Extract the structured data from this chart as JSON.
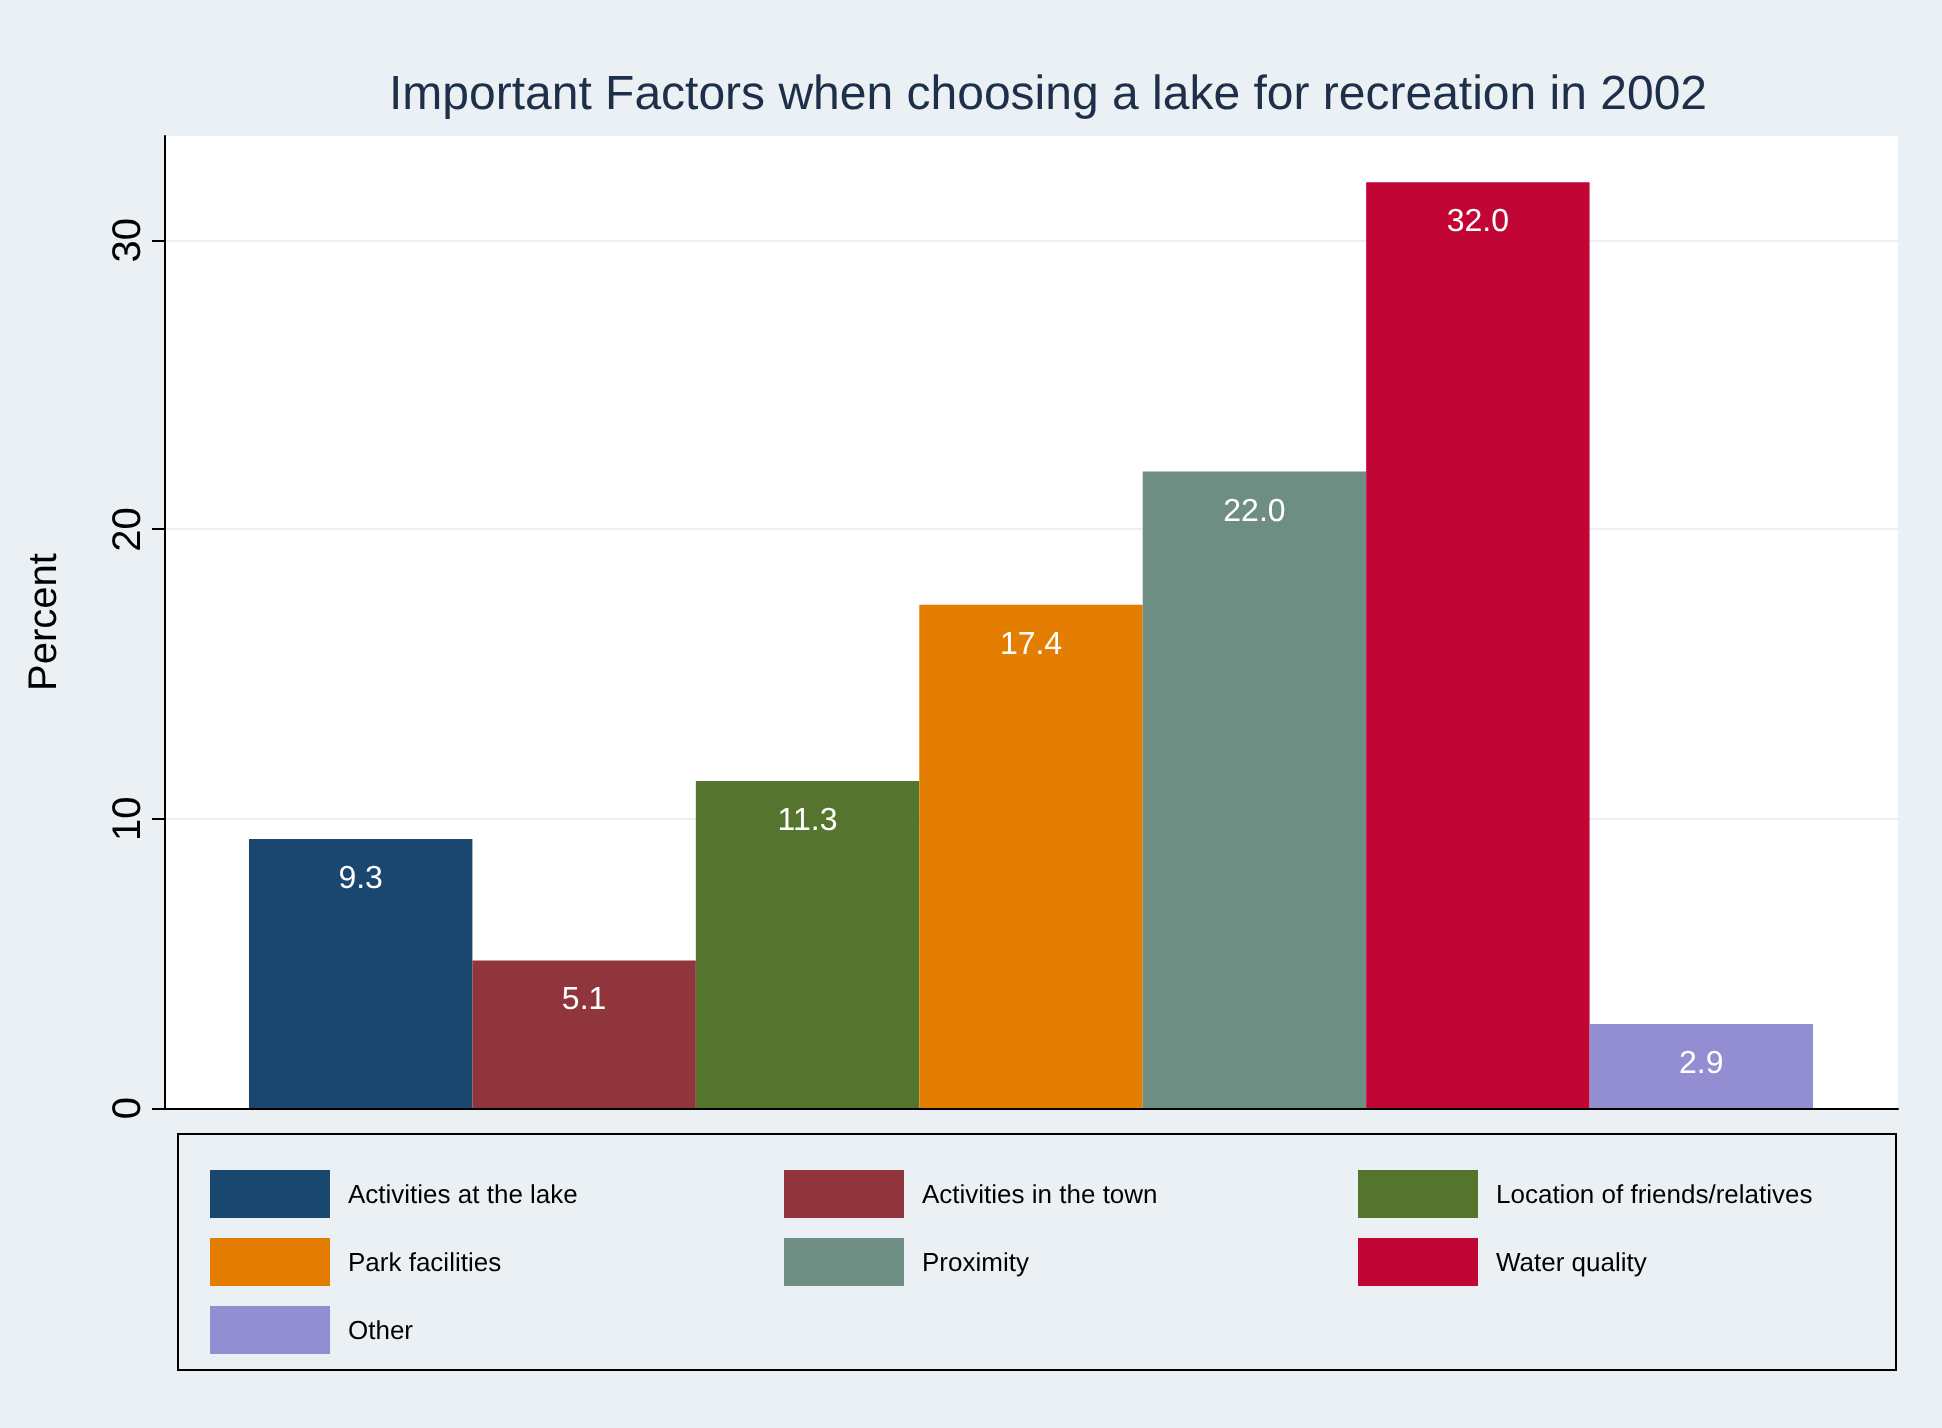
{
  "chart_data": {
    "type": "bar",
    "title": "Important Factors when choosing a lake for recreation in 2002",
    "ylabel": "Percent",
    "categories": [
      null
    ],
    "series": [
      {
        "name": "Activities at the lake",
        "color": "#1a476f",
        "values": [
          9.3
        ],
        "value_labels": [
          "9.3"
        ]
      },
      {
        "name": "Activities in the town",
        "color": "#90353b",
        "values": [
          5.1
        ],
        "value_labels": [
          "5.1"
        ]
      },
      {
        "name": "Location of friends/relatives",
        "color": "#55752f",
        "values": [
          11.3
        ],
        "value_labels": [
          "11.3"
        ]
      },
      {
        "name": "Park facilities",
        "color": "#e37e00",
        "values": [
          17.4
        ],
        "value_labels": [
          "17.4"
        ]
      },
      {
        "name": "Proximity",
        "color": "#6e8e84",
        "values": [
          22.0
        ],
        "value_labels": [
          "22.0"
        ]
      },
      {
        "name": "Water quality",
        "color": "#c10534",
        "values": [
          32.0
        ],
        "value_labels": [
          "32.0"
        ]
      },
      {
        "name": "Other",
        "color": "#938dd2",
        "values": [
          2.9
        ],
        "value_labels": [
          "2.9"
        ]
      }
    ],
    "ylim": [
      0,
      33.6
    ],
    "yticks": [
      0,
      10,
      20,
      30
    ],
    "grid": "y",
    "legend": "bottom"
  }
}
